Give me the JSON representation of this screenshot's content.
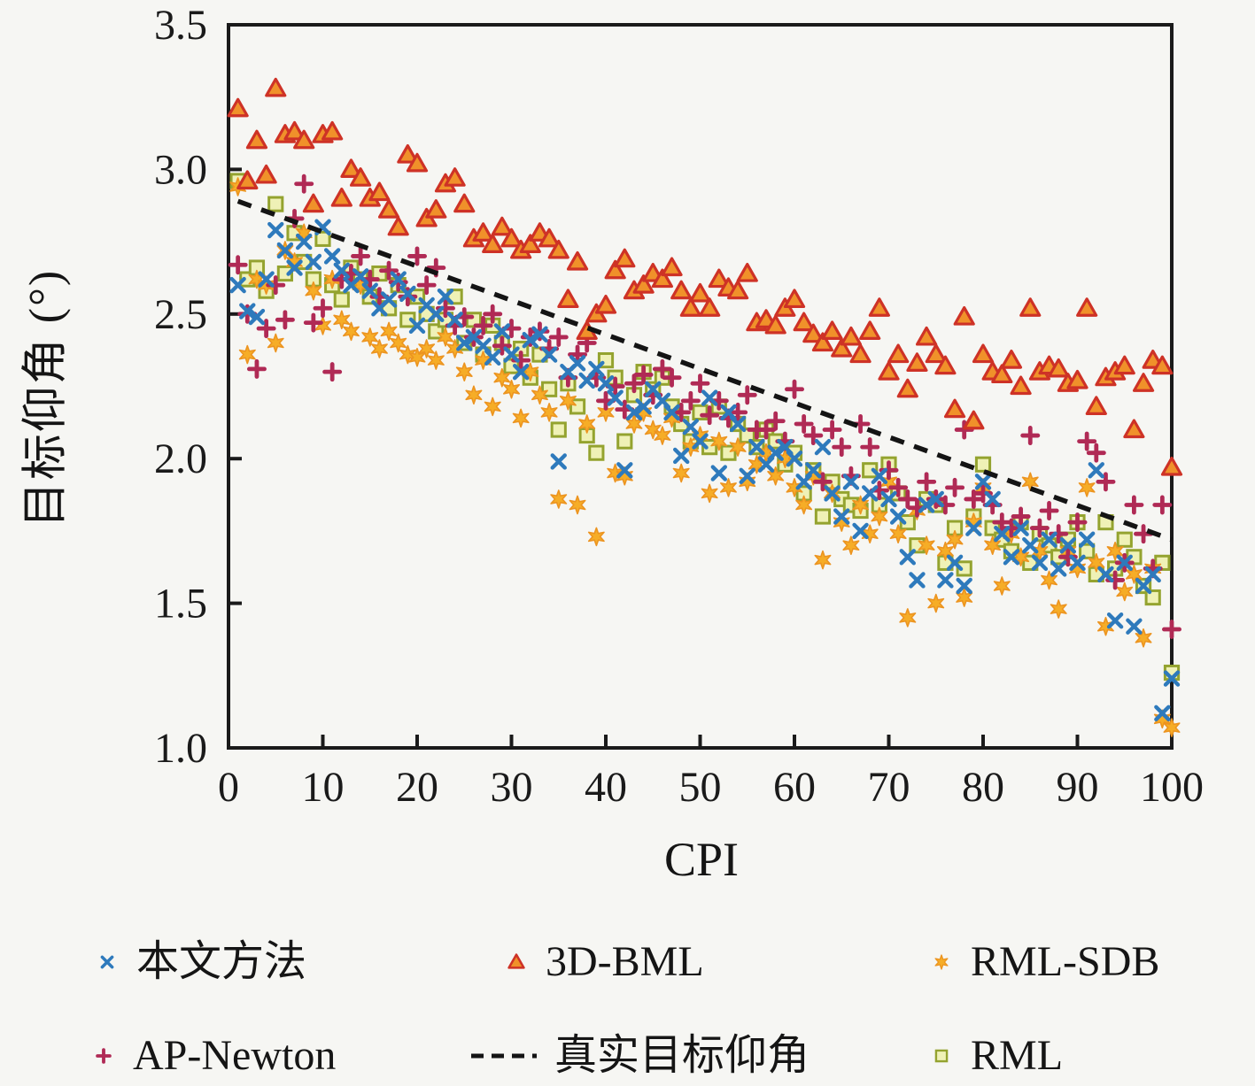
{
  "figure": {
    "background": "#f6f6f3",
    "axis_color": "#1a1a1a"
  },
  "chart_data": {
    "type": "scatter",
    "title": "",
    "xlabel": "CPI",
    "ylabel": "目标仰角 (°)",
    "xlim": [
      0,
      100
    ],
    "ylim": [
      1.0,
      3.5
    ],
    "grid": false,
    "legend_position": "below, two rows, three columns",
    "xticks": [
      {
        "v": 0,
        "label": "0"
      },
      {
        "v": 10,
        "label": "10"
      },
      {
        "v": 20,
        "label": "20"
      },
      {
        "v": 30,
        "label": "30"
      },
      {
        "v": 40,
        "label": "40"
      },
      {
        "v": 50,
        "label": "50"
      },
      {
        "v": 60,
        "label": "60"
      },
      {
        "v": 70,
        "label": "70"
      },
      {
        "v": 80,
        "label": "80"
      },
      {
        "v": 90,
        "label": "90"
      },
      {
        "v": 100,
        "label": "100"
      }
    ],
    "yticks": [
      {
        "v": 1.0,
        "label": "1.0"
      },
      {
        "v": 1.5,
        "label": "1.5"
      },
      {
        "v": 2.0,
        "label": "2.0"
      },
      {
        "v": 2.5,
        "label": "2.5"
      },
      {
        "v": 3.0,
        "label": "3.0"
      },
      {
        "v": 3.5,
        "label": "3.5"
      }
    ],
    "x": [
      1,
      2,
      3,
      4,
      5,
      6,
      7,
      8,
      9,
      10,
      11,
      12,
      13,
      14,
      15,
      16,
      17,
      18,
      19,
      20,
      21,
      22,
      23,
      24,
      25,
      26,
      27,
      28,
      29,
      30,
      31,
      32,
      33,
      34,
      35,
      36,
      37,
      38,
      39,
      40,
      41,
      42,
      43,
      44,
      45,
      46,
      47,
      48,
      49,
      50,
      51,
      52,
      53,
      54,
      55,
      56,
      57,
      58,
      59,
      60,
      61,
      62,
      63,
      64,
      65,
      66,
      67,
      68,
      69,
      70,
      71,
      72,
      73,
      74,
      75,
      76,
      77,
      78,
      79,
      80,
      81,
      82,
      83,
      84,
      85,
      86,
      87,
      88,
      89,
      90,
      91,
      92,
      93,
      94,
      95,
      96,
      97,
      98,
      99,
      100
    ],
    "series": [
      {
        "name": "本文方法",
        "marker": "x",
        "color": "#2e7abc",
        "y": [
          2.6,
          2.51,
          2.49,
          2.62,
          2.79,
          2.72,
          2.66,
          2.75,
          2.68,
          2.8,
          2.7,
          2.65,
          2.6,
          2.63,
          2.58,
          2.52,
          2.55,
          2.62,
          2.57,
          2.46,
          2.53,
          2.5,
          2.56,
          2.48,
          2.4,
          2.42,
          2.39,
          2.35,
          2.44,
          2.36,
          2.3,
          2.41,
          2.43,
          2.36,
          1.99,
          2.3,
          2.33,
          2.27,
          2.31,
          2.26,
          2.21,
          1.96,
          2.16,
          2.18,
          2.24,
          2.2,
          2.16,
          2.01,
          2.11,
          2.06,
          2.21,
          1.95,
          2.16,
          2.12,
          1.94,
          2.04,
          1.98,
          2.02,
          2.04,
          2.0,
          1.92,
          1.96,
          2.04,
          1.88,
          1.8,
          1.92,
          1.75,
          1.88,
          1.94,
          1.86,
          1.8,
          1.66,
          1.58,
          1.84,
          1.86,
          1.58,
          1.64,
          1.56,
          1.76,
          1.92,
          1.86,
          1.74,
          1.66,
          1.76,
          1.7,
          1.64,
          1.72,
          1.62,
          1.7,
          1.64,
          1.72,
          1.96,
          1.6,
          1.44,
          1.64,
          1.42,
          1.56,
          1.6,
          1.12,
          1.24
        ]
      },
      {
        "name": "3D-BML",
        "marker": "triangle",
        "color": "#ce3226",
        "fill": "#f0912a",
        "y": [
          3.21,
          2.96,
          3.1,
          2.98,
          3.28,
          3.12,
          3.13,
          3.1,
          2.88,
          3.12,
          3.13,
          2.9,
          3.0,
          2.97,
          2.9,
          2.92,
          2.86,
          2.8,
          3.05,
          3.02,
          2.83,
          2.86,
          2.95,
          2.97,
          2.88,
          2.76,
          2.78,
          2.74,
          2.8,
          2.76,
          2.72,
          2.74,
          2.78,
          2.76,
          2.72,
          2.55,
          2.68,
          2.44,
          2.5,
          2.53,
          2.65,
          2.69,
          2.58,
          2.6,
          2.64,
          2.62,
          2.66,
          2.58,
          2.52,
          2.57,
          2.52,
          2.62,
          2.59,
          2.58,
          2.64,
          2.47,
          2.48,
          2.46,
          2.52,
          2.55,
          2.47,
          2.43,
          2.4,
          2.44,
          2.38,
          2.42,
          2.36,
          2.44,
          2.52,
          2.3,
          2.36,
          2.24,
          2.33,
          2.42,
          2.36,
          2.32,
          2.17,
          2.49,
          2.13,
          2.36,
          2.3,
          2.29,
          2.34,
          2.25,
          2.52,
          2.3,
          2.32,
          2.31,
          2.26,
          2.27,
          2.52,
          2.18,
          2.28,
          2.3,
          2.32,
          2.1,
          2.26,
          2.34,
          2.32,
          1.97
        ]
      },
      {
        "name": "RML-SDB",
        "marker": "star",
        "color": "#ec9420",
        "fill": "#f6ad27",
        "y": [
          2.94,
          2.36,
          2.62,
          2.6,
          2.4,
          2.72,
          2.68,
          2.78,
          2.58,
          2.46,
          2.62,
          2.48,
          2.44,
          2.6,
          2.42,
          2.38,
          2.44,
          2.4,
          2.36,
          2.35,
          2.38,
          2.34,
          2.42,
          2.38,
          2.3,
          2.22,
          2.34,
          2.18,
          2.28,
          2.24,
          2.14,
          2.3,
          2.22,
          2.16,
          1.86,
          2.2,
          1.84,
          2.12,
          1.73,
          2.16,
          1.95,
          1.94,
          2.12,
          2.16,
          2.1,
          2.08,
          2.14,
          1.95,
          2.04,
          2.08,
          1.88,
          2.06,
          1.9,
          2.04,
          1.92,
          1.98,
          2.02,
          1.94,
          2.0,
          1.9,
          1.84,
          1.94,
          1.65,
          1.88,
          1.78,
          1.7,
          1.84,
          1.74,
          1.8,
          1.92,
          1.74,
          1.45,
          1.82,
          1.7,
          1.5,
          1.68,
          1.72,
          1.52,
          1.78,
          1.9,
          1.7,
          1.56,
          1.74,
          1.66,
          1.92,
          1.68,
          1.58,
          1.48,
          1.68,
          1.62,
          1.9,
          1.64,
          1.42,
          1.68,
          1.54,
          1.6,
          1.38,
          1.62,
          1.1,
          1.07
        ]
      },
      {
        "name": "AP-Newton",
        "marker": "plus",
        "color": "#b02a55",
        "y": [
          2.67,
          2.5,
          2.31,
          2.45,
          2.6,
          2.48,
          2.83,
          2.95,
          2.47,
          2.52,
          2.3,
          2.62,
          2.64,
          2.7,
          2.62,
          2.56,
          2.65,
          2.61,
          2.56,
          2.7,
          2.6,
          2.66,
          2.52,
          2.46,
          2.49,
          2.42,
          2.46,
          2.5,
          2.39,
          2.45,
          2.34,
          2.42,
          2.44,
          2.38,
          2.42,
          2.28,
          2.36,
          2.4,
          2.28,
          2.2,
          2.25,
          2.17,
          2.26,
          2.29,
          2.22,
          2.31,
          2.28,
          2.16,
          2.2,
          2.26,
          2.15,
          2.2,
          2.14,
          2.16,
          2.22,
          2.1,
          2.1,
          2.13,
          2.06,
          2.24,
          2.12,
          2.08,
          1.92,
          2.1,
          2.04,
          1.94,
          2.12,
          2.04,
          1.89,
          1.96,
          1.9,
          1.86,
          1.83,
          1.92,
          1.86,
          1.84,
          1.9,
          2.1,
          1.86,
          1.88,
          1.84,
          1.78,
          1.76,
          1.8,
          2.08,
          1.76,
          1.82,
          1.74,
          1.66,
          1.78,
          2.06,
          2.02,
          1.92,
          1.58,
          1.64,
          1.84,
          1.74,
          1.62,
          1.84,
          1.41
        ]
      },
      {
        "name": "RML",
        "marker": "square",
        "color": "#94a32f",
        "fill": "#eff1b6",
        "y": [
          2.96,
          2.62,
          2.66,
          2.58,
          2.88,
          2.64,
          2.78,
          2.68,
          2.62,
          2.76,
          2.6,
          2.55,
          2.66,
          2.62,
          2.56,
          2.64,
          2.52,
          2.6,
          2.48,
          2.56,
          2.5,
          2.44,
          2.48,
          2.56,
          2.4,
          2.48,
          2.36,
          2.46,
          2.4,
          2.32,
          2.38,
          2.28,
          2.36,
          2.24,
          2.1,
          2.26,
          2.18,
          2.08,
          2.02,
          2.34,
          2.28,
          2.06,
          2.22,
          2.3,
          2.24,
          2.28,
          2.18,
          2.12,
          2.06,
          2.16,
          2.04,
          2.18,
          2.02,
          2.12,
          2.08,
          2.04,
          2.1,
          2.06,
          1.98,
          2.02,
          1.88,
          1.96,
          1.8,
          1.92,
          1.86,
          1.84,
          1.82,
          1.96,
          1.84,
          1.98,
          1.88,
          1.78,
          1.7,
          1.86,
          1.84,
          1.64,
          1.76,
          1.62,
          1.8,
          1.98,
          1.76,
          1.72,
          1.68,
          1.78,
          1.64,
          1.74,
          1.7,
          1.66,
          1.72,
          1.78,
          1.68,
          1.6,
          1.78,
          1.62,
          1.72,
          1.66,
          1.56,
          1.52,
          1.64,
          1.26
        ]
      }
    ],
    "true_line": {
      "name": "真实目标仰角",
      "style": "dashed",
      "color": "#141414",
      "points": [
        [
          1,
          2.89
        ],
        [
          100,
          1.72
        ]
      ]
    }
  },
  "legend": {
    "row1": [
      "本文方法",
      "3D-BML",
      "RML-SDB"
    ],
    "row2": [
      "AP-Newton",
      "真实目标仰角",
      "RML"
    ]
  }
}
